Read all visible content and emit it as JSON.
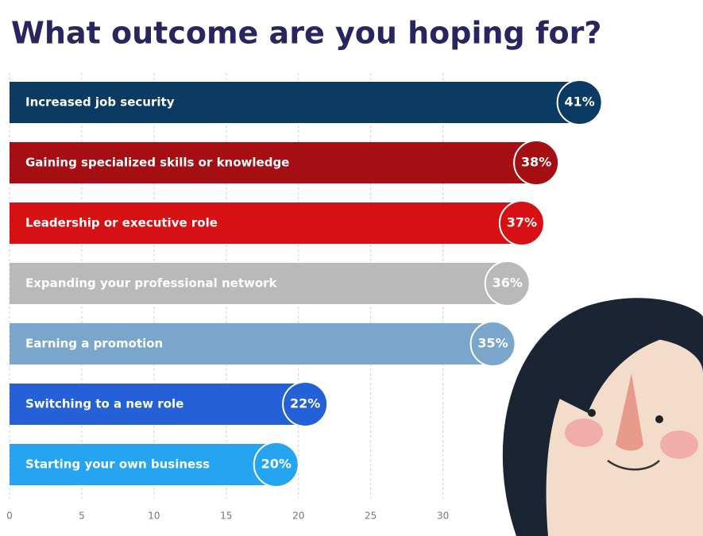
{
  "chart_data": {
    "type": "bar",
    "orientation": "horizontal",
    "title": "What outcome are you hoping for?",
    "categories": [
      "Increased job security",
      "Gaining specialized skills or knowledge",
      "Leadership or executive role",
      "Expanding your professional network",
      "Earning a promotion",
      "Switching to a new role",
      "Starting your own business"
    ],
    "values": [
      41,
      38,
      37,
      36,
      35,
      22,
      20
    ],
    "value_labels": [
      "41%",
      "38%",
      "37%",
      "36%",
      "35%",
      "22%",
      "20%"
    ],
    "colors": [
      "#0b3a63",
      "#a50e12",
      "#d81014",
      "#b9b9b9",
      "#7ba6cc",
      "#2461d6",
      "#25a5f1"
    ],
    "xlim": [
      0,
      48
    ],
    "xticks": [
      0,
      5,
      10,
      15,
      20,
      25,
      30
    ],
    "grid": true
  }
}
